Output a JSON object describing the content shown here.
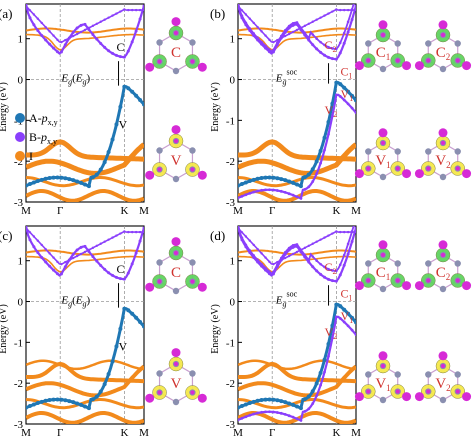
{
  "panels": {
    "a": {
      "letter": "(a)",
      "band_label_C": "C",
      "band_label_V": "V",
      "gap_E": "E",
      "gap_sub1": "g",
      "gap_paren_open": "(",
      "gap_E2": "E",
      "gap_sub2": "g",
      "gap_paren_close": ")",
      "mol_label_C": "C",
      "mol_label_V": "V"
    },
    "b": {
      "letter": "(b)",
      "band_label_C": "C",
      "band_sub_C": "2",
      "band_label_C1": "C",
      "band_sub_C1": "1",
      "band_label_V1": "V",
      "band_sub_V1": "1",
      "band_label_V2": "V",
      "band_sub_V2": "2",
      "gap_E": "E",
      "gap_sub": "g",
      "gap_sup": "soc",
      "mol_C1": "C",
      "mol_C1_sub": "1",
      "mol_C2": "C",
      "mol_C2_sub": "2",
      "mol_V1": "V",
      "mol_V1_sub": "1",
      "mol_V2": "V",
      "mol_V2_sub": "2"
    },
    "c": {
      "letter": "(c)",
      "band_label_C": "C",
      "band_label_V": "V",
      "gap_E": "E",
      "gap_sub1": "g",
      "gap_paren_open": "(",
      "gap_E2": "E",
      "gap_sub2": "g",
      "gap_paren_close": ")",
      "mol_label_C": "C",
      "mol_label_V": "V"
    },
    "d": {
      "letter": "(d)",
      "band_label_C": "C",
      "band_sub_C": "2",
      "band_label_C1": "C",
      "band_sub_C1": "1",
      "band_label_V1": "V",
      "band_sub_V1": "1",
      "band_label_V2": "V",
      "band_sub_V2": "2",
      "gap_E": "E",
      "gap_sub": "g",
      "gap_sup": "soc",
      "mol_C1": "C",
      "mol_C1_sub": "1",
      "mol_C2": "C",
      "mol_C2_sub": "2",
      "mol_V1": "V",
      "mol_V1_sub": "1",
      "mol_V2": "V",
      "mol_V2_sub": "2"
    }
  },
  "axes": {
    "ylabel": "Energy (eV)",
    "yticks": [
      "1",
      "0",
      "-1",
      "-2",
      "-3"
    ],
    "xticks": [
      "M",
      "Γ",
      "K",
      "M"
    ]
  },
  "legend": {
    "a_label": "A-",
    "a_p": "p",
    "a_sub": "x,y",
    "b_label": "B-",
    "b_p": "p",
    "b_sub": "x,y",
    "i_label": "I"
  },
  "colors": {
    "A": "#1f77b4",
    "B": "#8a3ffc",
    "I": "#f28a1c",
    "red_label": "#d0332f",
    "orbital_green": "#5fd35f",
    "orbital_yellow": "#f5e84a",
    "atom_magenta": "#d62ad6",
    "atom_gray": "#8a8fb0"
  }
}
